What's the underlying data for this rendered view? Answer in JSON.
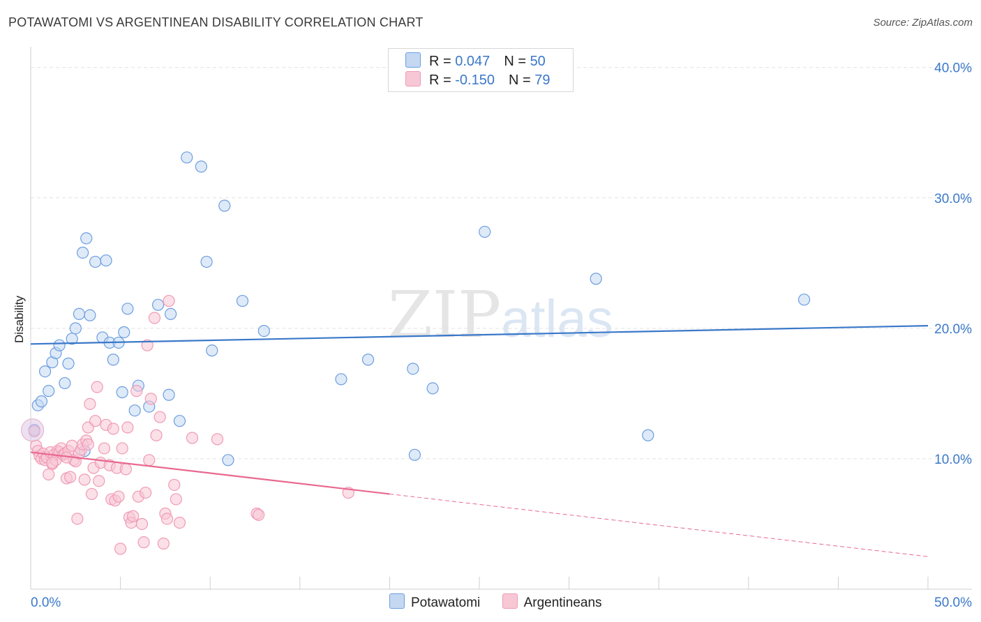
{
  "title": "POTAWATOMI VS ARGENTINEAN DISABILITY CORRELATION CHART",
  "source": "Source: ZipAtlas.com",
  "watermark": {
    "zip": "ZIP",
    "atlas": "atlas"
  },
  "colors": {
    "blue": "#3a78c9",
    "blue_fill": "#c4d8f2",
    "blue_stroke": "#6b9ee0",
    "pink": "#e8688f",
    "pink_fill": "#f7c7d6",
    "pink_stroke": "#f09ab5",
    "grid": "#e2e2e2",
    "axis": "#cfcfcf"
  },
  "legend_top": {
    "rows": [
      {
        "r_label": "R = ",
        "r_value": "0.047",
        "n_label": "N = ",
        "n_value": "50"
      },
      {
        "r_label": "R = ",
        "r_value": "-0.150",
        "n_label": "N = ",
        "n_value": "79"
      }
    ]
  },
  "legend_bottom": {
    "potawatomi": "Potawatomi",
    "argentineans": "Argentineans"
  },
  "chart_data": {
    "type": "scatter",
    "title": "POTAWATOMI VS ARGENTINEAN DISABILITY CORRELATION CHART",
    "xlabel": "",
    "ylabel": "Disability",
    "xlim": [
      0,
      50
    ],
    "ylim": [
      0,
      41
    ],
    "x_tick_labels": [
      {
        "value": 0,
        "label": "0.0%"
      },
      {
        "value": 50,
        "label": "50.0%"
      }
    ],
    "y_tick_labels": [
      {
        "value": 10,
        "label": "10.0%"
      },
      {
        "value": 20,
        "label": "20.0%"
      },
      {
        "value": 30,
        "label": "30.0%"
      },
      {
        "value": 40,
        "label": "40.0%"
      }
    ],
    "series": [
      {
        "name": "Potawatomi",
        "R": 0.047,
        "N": 50,
        "trend": {
          "x0": 0,
          "y0": 18.8,
          "x1": 50,
          "y1": 20.2,
          "dashed_from": null
        },
        "points": [
          [
            0.2,
            12.2
          ],
          [
            0.4,
            14.1
          ],
          [
            0.6,
            14.4
          ],
          [
            0.8,
            16.7
          ],
          [
            1.0,
            15.2
          ],
          [
            1.2,
            17.4
          ],
          [
            1.4,
            18.1
          ],
          [
            1.6,
            18.7
          ],
          [
            1.9,
            15.8
          ],
          [
            2.1,
            17.3
          ],
          [
            2.3,
            19.2
          ],
          [
            2.5,
            20.0
          ],
          [
            2.7,
            21.1
          ],
          [
            2.9,
            25.8
          ],
          [
            3.1,
            26.9
          ],
          [
            3.3,
            21.0
          ],
          [
            3.6,
            25.1
          ],
          [
            4.0,
            19.3
          ],
          [
            4.2,
            25.2
          ],
          [
            4.4,
            18.9
          ],
          [
            4.6,
            17.6
          ],
          [
            4.9,
            18.9
          ],
          [
            5.2,
            19.7
          ],
          [
            5.4,
            21.5
          ],
          [
            5.1,
            15.1
          ],
          [
            5.8,
            13.7
          ],
          [
            6.0,
            15.6
          ],
          [
            6.6,
            14.0
          ],
          [
            7.1,
            21.8
          ],
          [
            7.8,
            21.1
          ],
          [
            7.7,
            14.9
          ],
          [
            8.3,
            12.9
          ],
          [
            8.7,
            33.1
          ],
          [
            9.5,
            32.4
          ],
          [
            9.8,
            25.1
          ],
          [
            10.1,
            18.3
          ],
          [
            10.8,
            29.4
          ],
          [
            11.0,
            9.9
          ],
          [
            11.8,
            22.1
          ],
          [
            13.0,
            19.8
          ],
          [
            17.3,
            16.1
          ],
          [
            18.8,
            17.6
          ],
          [
            21.3,
            16.9
          ],
          [
            21.4,
            10.3
          ],
          [
            22.4,
            15.4
          ],
          [
            25.3,
            27.4
          ],
          [
            31.5,
            23.8
          ],
          [
            34.4,
            11.8
          ],
          [
            3.0,
            10.6
          ],
          [
            43.1,
            22.2
          ]
        ]
      },
      {
        "name": "Argentineans",
        "R": -0.15,
        "N": 79,
        "trend": {
          "x0": 0,
          "y0": 10.5,
          "x1": 50,
          "y1": 2.5,
          "dashed_from": 20
        },
        "points": [
          [
            0.2,
            12.1
          ],
          [
            0.3,
            11.0
          ],
          [
            0.4,
            10.6
          ],
          [
            0.5,
            10.2
          ],
          [
            0.6,
            10.0
          ],
          [
            0.7,
            10.4
          ],
          [
            0.8,
            9.9
          ],
          [
            0.9,
            10.1
          ],
          [
            1.0,
            8.8
          ],
          [
            1.1,
            10.5
          ],
          [
            1.2,
            9.6
          ],
          [
            1.3,
            10.3
          ],
          [
            1.4,
            9.9
          ],
          [
            1.5,
            10.6
          ],
          [
            1.6,
            10.5
          ],
          [
            1.7,
            10.8
          ],
          [
            1.8,
            10.3
          ],
          [
            1.9,
            10.4
          ],
          [
            2.0,
            8.5
          ],
          [
            2.1,
            10.6
          ],
          [
            2.2,
            8.6
          ],
          [
            2.3,
            11.0
          ],
          [
            2.4,
            9.9
          ],
          [
            2.5,
            9.8
          ],
          [
            2.6,
            5.4
          ],
          [
            2.7,
            10.4
          ],
          [
            2.8,
            10.7
          ],
          [
            2.9,
            11.1
          ],
          [
            3.0,
            8.4
          ],
          [
            3.1,
            11.4
          ],
          [
            3.2,
            12.4
          ],
          [
            3.3,
            14.2
          ],
          [
            3.4,
            7.3
          ],
          [
            3.5,
            9.3
          ],
          [
            3.6,
            12.9
          ],
          [
            3.7,
            15.5
          ],
          [
            3.8,
            8.3
          ],
          [
            3.9,
            9.7
          ],
          [
            4.1,
            10.8
          ],
          [
            4.2,
            12.6
          ],
          [
            4.4,
            9.5
          ],
          [
            4.5,
            6.9
          ],
          [
            4.6,
            12.3
          ],
          [
            4.7,
            6.8
          ],
          [
            4.8,
            9.3
          ],
          [
            4.9,
            7.1
          ],
          [
            5.0,
            3.1
          ],
          [
            5.1,
            10.8
          ],
          [
            5.3,
            9.2
          ],
          [
            5.4,
            12.4
          ],
          [
            5.5,
            5.5
          ],
          [
            5.6,
            5.1
          ],
          [
            5.7,
            5.6
          ],
          [
            5.9,
            15.2
          ],
          [
            6.0,
            7.1
          ],
          [
            6.2,
            5.0
          ],
          [
            6.3,
            3.6
          ],
          [
            6.4,
            7.4
          ],
          [
            6.5,
            18.7
          ],
          [
            6.6,
            9.9
          ],
          [
            6.7,
            14.6
          ],
          [
            6.9,
            20.8
          ],
          [
            7.0,
            11.8
          ],
          [
            7.2,
            13.2
          ],
          [
            7.4,
            3.5
          ],
          [
            7.5,
            5.8
          ],
          [
            7.6,
            5.4
          ],
          [
            7.7,
            22.1
          ],
          [
            8.0,
            8.0
          ],
          [
            8.1,
            6.9
          ],
          [
            8.3,
            5.1
          ],
          [
            9.0,
            11.6
          ],
          [
            10.4,
            11.5
          ],
          [
            12.6,
            5.8
          ],
          [
            12.7,
            5.7
          ],
          [
            17.7,
            7.4
          ],
          [
            1.2,
            9.7
          ],
          [
            2.0,
            10.1
          ],
          [
            3.2,
            11.1
          ]
        ]
      }
    ]
  }
}
